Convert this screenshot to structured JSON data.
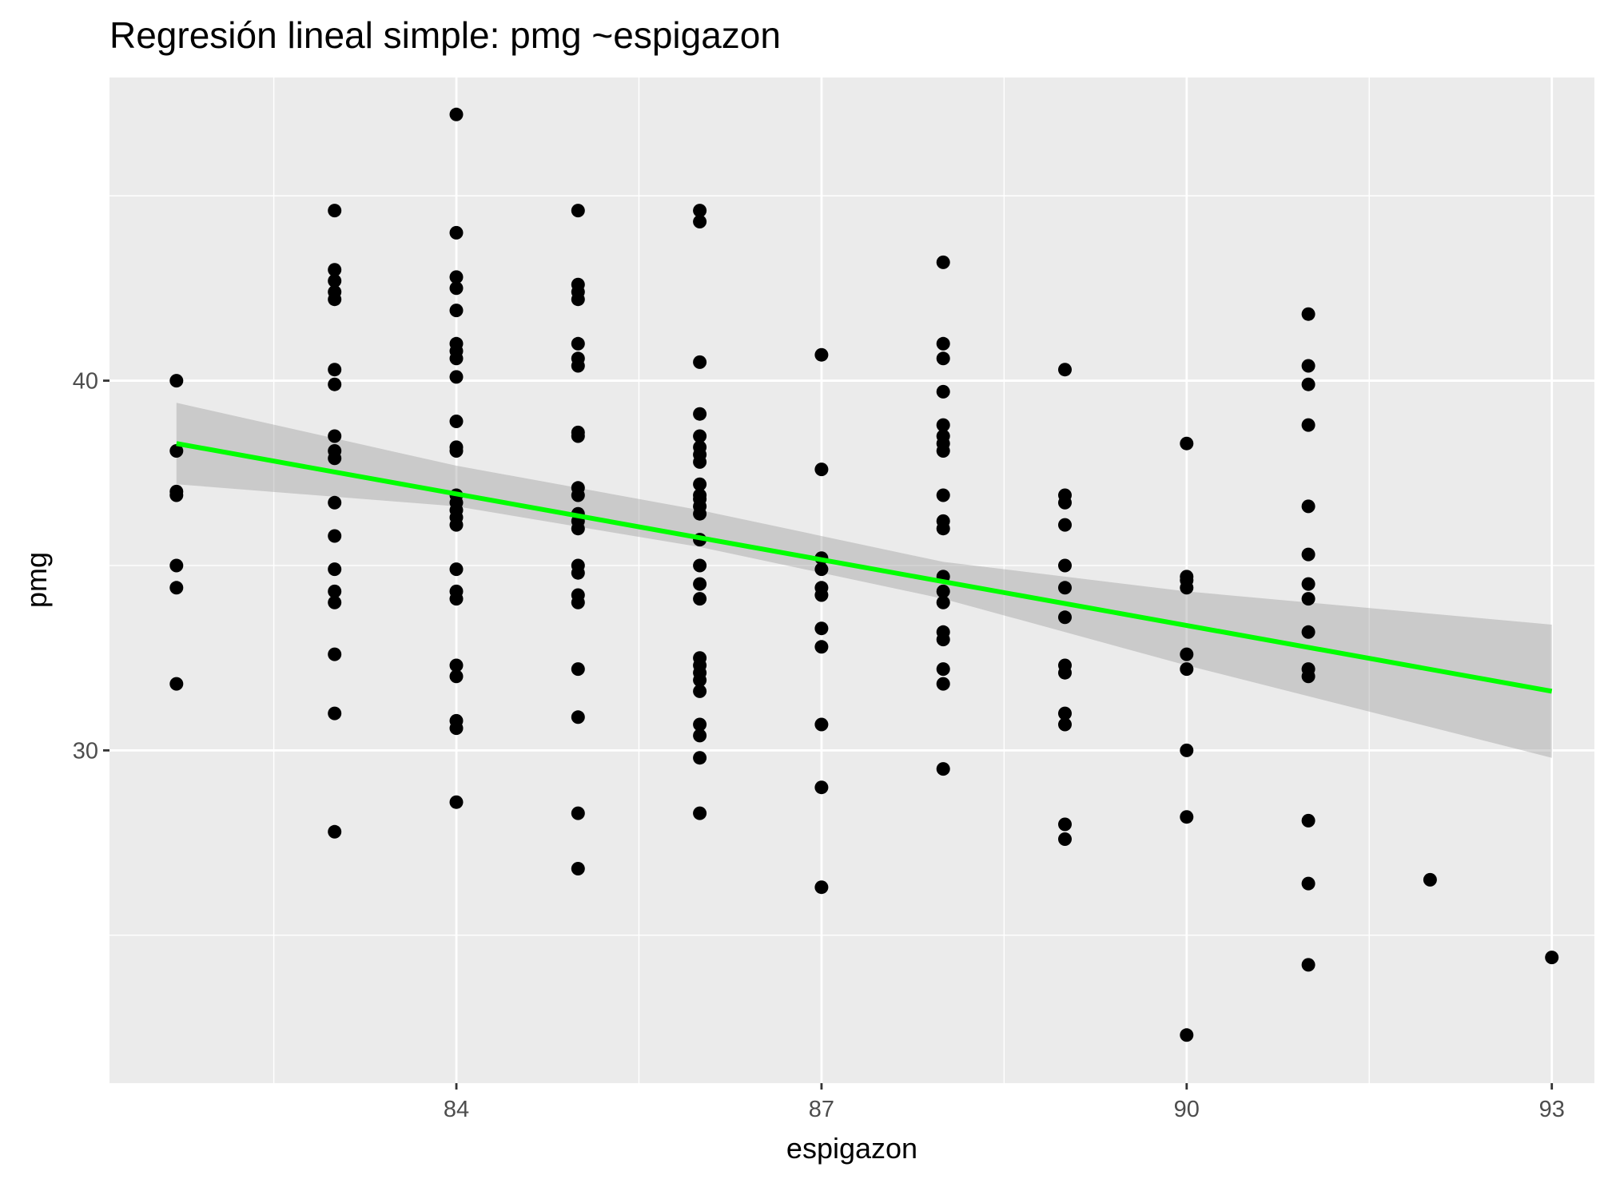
{
  "chart_data": {
    "type": "scatter",
    "title": "Regresión lineal simple:  pmg ~espigazon",
    "xlabel": "espigazon",
    "ylabel": "pmg",
    "xlim": [
      81.15,
      93.35
    ],
    "ylim": [
      21.0,
      48.2
    ],
    "x_ticks": [
      84,
      87,
      90,
      93
    ],
    "y_ticks": [
      30,
      40
    ],
    "x_minor_ticks": [
      82.5,
      85.5,
      88.5,
      91.5
    ],
    "y_minor_ticks": [
      25,
      35,
      45
    ],
    "grid": true,
    "legend": "none",
    "colors": {
      "panel_background": "#ebebeb",
      "grid": "#ffffff",
      "points": "#000000",
      "fit_line": "#00ff00",
      "confidence_band": "#999999"
    },
    "points": [
      [
        81.7,
        40.0
      ],
      [
        81.7,
        38.1
      ],
      [
        81.7,
        37.0
      ],
      [
        81.7,
        36.9
      ],
      [
        81.7,
        35.0
      ],
      [
        81.7,
        34.4
      ],
      [
        81.7,
        31.8
      ],
      [
        83,
        44.6
      ],
      [
        83,
        43.0
      ],
      [
        83,
        42.7
      ],
      [
        83,
        42.4
      ],
      [
        83,
        42.2
      ],
      [
        83,
        40.3
      ],
      [
        83,
        39.9
      ],
      [
        83,
        38.5
      ],
      [
        83,
        38.1
      ],
      [
        83,
        37.9
      ],
      [
        83,
        36.7
      ],
      [
        83,
        35.8
      ],
      [
        83,
        34.9
      ],
      [
        83,
        34.3
      ],
      [
        83,
        34.0
      ],
      [
        83,
        32.6
      ],
      [
        83,
        31.0
      ],
      [
        83,
        27.8
      ],
      [
        84,
        47.2
      ],
      [
        84,
        44.0
      ],
      [
        84,
        42.8
      ],
      [
        84,
        42.5
      ],
      [
        84,
        41.9
      ],
      [
        84,
        41.0
      ],
      [
        84,
        40.8
      ],
      [
        84,
        40.6
      ],
      [
        84,
        40.1
      ],
      [
        84,
        38.9
      ],
      [
        84,
        38.2
      ],
      [
        84,
        38.1
      ],
      [
        84,
        36.9
      ],
      [
        84,
        36.7
      ],
      [
        84,
        36.5
      ],
      [
        84,
        36.3
      ],
      [
        84,
        36.1
      ],
      [
        84,
        34.9
      ],
      [
        84,
        34.3
      ],
      [
        84,
        34.1
      ],
      [
        84,
        32.3
      ],
      [
        84,
        32.0
      ],
      [
        84,
        30.8
      ],
      [
        84,
        30.6
      ],
      [
        84,
        28.6
      ],
      [
        85,
        44.6
      ],
      [
        85,
        42.6
      ],
      [
        85,
        42.4
      ],
      [
        85,
        42.2
      ],
      [
        85,
        41.0
      ],
      [
        85,
        40.6
      ],
      [
        85,
        40.4
      ],
      [
        85,
        38.6
      ],
      [
        85,
        38.5
      ],
      [
        85,
        37.1
      ],
      [
        85,
        36.9
      ],
      [
        85,
        36.4
      ],
      [
        85,
        36.2
      ],
      [
        85,
        36.0
      ],
      [
        85,
        35.0
      ],
      [
        85,
        34.8
      ],
      [
        85,
        34.2
      ],
      [
        85,
        34.0
      ],
      [
        85,
        32.2
      ],
      [
        85,
        30.9
      ],
      [
        85,
        28.3
      ],
      [
        85,
        26.8
      ],
      [
        86,
        44.6
      ],
      [
        86,
        44.3
      ],
      [
        86,
        40.5
      ],
      [
        86,
        39.1
      ],
      [
        86,
        38.5
      ],
      [
        86,
        38.2
      ],
      [
        86,
        38.0
      ],
      [
        86,
        37.8
      ],
      [
        86,
        37.2
      ],
      [
        86,
        36.9
      ],
      [
        86,
        36.8
      ],
      [
        86,
        36.6
      ],
      [
        86,
        36.4
      ],
      [
        86,
        35.7
      ],
      [
        86,
        35.0
      ],
      [
        86,
        34.5
      ],
      [
        86,
        34.1
      ],
      [
        86,
        32.5
      ],
      [
        86,
        32.3
      ],
      [
        86,
        32.1
      ],
      [
        86,
        31.9
      ],
      [
        86,
        31.6
      ],
      [
        86,
        30.7
      ],
      [
        86,
        30.4
      ],
      [
        86,
        29.8
      ],
      [
        86,
        28.3
      ],
      [
        87,
        40.7
      ],
      [
        87,
        37.6
      ],
      [
        87,
        35.2
      ],
      [
        87,
        34.9
      ],
      [
        87,
        34.4
      ],
      [
        87,
        34.2
      ],
      [
        87,
        33.3
      ],
      [
        87,
        32.8
      ],
      [
        87,
        30.7
      ],
      [
        87,
        29.0
      ],
      [
        87,
        26.3
      ],
      [
        88,
        43.2
      ],
      [
        88,
        41.0
      ],
      [
        88,
        40.6
      ],
      [
        88,
        39.7
      ],
      [
        88,
        38.8
      ],
      [
        88,
        38.5
      ],
      [
        88,
        38.3
      ],
      [
        88,
        38.1
      ],
      [
        88,
        36.9
      ],
      [
        88,
        36.2
      ],
      [
        88,
        36.0
      ],
      [
        88,
        34.7
      ],
      [
        88,
        34.3
      ],
      [
        88,
        34.0
      ],
      [
        88,
        33.2
      ],
      [
        88,
        33.0
      ],
      [
        88,
        32.2
      ],
      [
        88,
        31.8
      ],
      [
        88,
        29.5
      ],
      [
        89,
        40.3
      ],
      [
        89,
        36.9
      ],
      [
        89,
        36.7
      ],
      [
        89,
        36.1
      ],
      [
        89,
        35.0
      ],
      [
        89,
        34.4
      ],
      [
        89,
        33.6
      ],
      [
        89,
        32.3
      ],
      [
        89,
        32.1
      ],
      [
        89,
        31.0
      ],
      [
        89,
        30.7
      ],
      [
        89,
        28.0
      ],
      [
        89,
        27.6
      ],
      [
        90,
        38.3
      ],
      [
        90,
        34.7
      ],
      [
        90,
        34.6
      ],
      [
        90,
        34.4
      ],
      [
        90,
        32.6
      ],
      [
        90,
        32.2
      ],
      [
        90,
        30.0
      ],
      [
        90,
        28.2
      ],
      [
        90,
        22.3
      ],
      [
        91,
        41.8
      ],
      [
        91,
        40.4
      ],
      [
        91,
        39.9
      ],
      [
        91,
        38.8
      ],
      [
        91,
        36.6
      ],
      [
        91,
        35.3
      ],
      [
        91,
        34.5
      ],
      [
        91,
        34.1
      ],
      [
        91,
        33.2
      ],
      [
        91,
        32.2
      ],
      [
        91,
        32.0
      ],
      [
        91,
        28.1
      ],
      [
        91,
        26.4
      ],
      [
        91,
        24.2
      ],
      [
        92,
        26.5
      ],
      [
        93,
        24.4
      ]
    ],
    "fit_line": {
      "x": [
        81.7,
        93
      ],
      "y": [
        38.3,
        31.6
      ]
    },
    "confidence_band": {
      "x": [
        81.7,
        84,
        86,
        88,
        90,
        93
      ],
      "lower": [
        37.2,
        36.6,
        35.5,
        34.1,
        32.3,
        29.8
      ],
      "upper": [
        39.4,
        37.7,
        36.5,
        35.1,
        34.3,
        33.4
      ]
    }
  }
}
